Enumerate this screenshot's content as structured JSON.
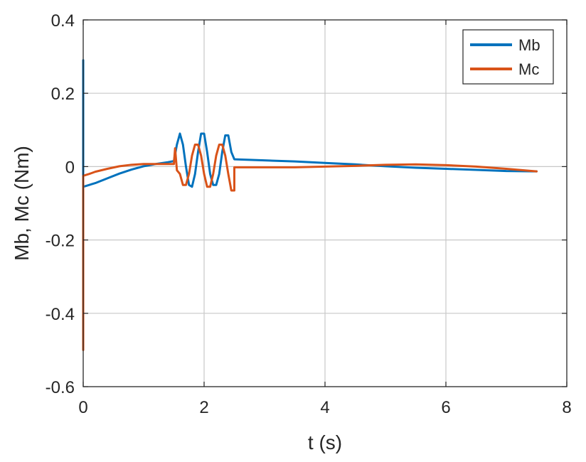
{
  "chart_data": {
    "type": "line",
    "xlabel": "t (s)",
    "ylabel": "Mb, Mc (Nm)",
    "xlim": [
      0,
      8
    ],
    "ylim": [
      -0.6,
      0.4
    ],
    "x_ticks": [
      0,
      2,
      4,
      6,
      8
    ],
    "x_tick_labels": [
      "0",
      "2",
      "4",
      "6",
      "8"
    ],
    "y_ticks": [
      -0.6,
      -0.4,
      -0.2,
      0,
      0.2,
      0.4
    ],
    "y_tick_labels": [
      "-0.6",
      "-0.4",
      "-0.2",
      "0",
      "0.2",
      "0.4"
    ],
    "grid": true,
    "legend_position": "top-right",
    "series": [
      {
        "name": "Mb",
        "color": "#0072BD",
        "x": [
          0,
          0,
          0,
          0.2,
          0.4,
          0.6,
          0.8,
          1.0,
          1.2,
          1.4,
          1.5,
          1.55,
          1.6,
          1.65,
          1.7,
          1.75,
          1.8,
          1.85,
          1.9,
          1.95,
          2.0,
          2.05,
          2.1,
          2.15,
          2.2,
          2.25,
          2.3,
          2.35,
          2.4,
          2.45,
          2.5,
          2.5,
          3.0,
          3.5,
          4.0,
          4.5,
          5.0,
          5.5,
          6.0,
          6.5,
          7.0,
          7.5
        ],
        "y": [
          0.29,
          0.01,
          -0.055,
          -0.045,
          -0.032,
          -0.019,
          -0.008,
          0.001,
          0.007,
          0.012,
          0.015,
          0.06,
          0.09,
          0.06,
          0.0,
          -0.05,
          -0.055,
          -0.02,
          0.04,
          0.09,
          0.09,
          0.04,
          -0.02,
          -0.05,
          -0.05,
          -0.02,
          0.04,
          0.085,
          0.085,
          0.04,
          0.02,
          0.02,
          0.017,
          0.014,
          0.01,
          0.006,
          0.001,
          -0.003,
          -0.006,
          -0.009,
          -0.012,
          -0.013
        ]
      },
      {
        "name": "Mc",
        "color": "#D95319",
        "x": [
          0,
          0,
          0,
          0.1,
          0.2,
          0.4,
          0.6,
          0.8,
          1.0,
          1.2,
          1.4,
          1.5,
          1.52,
          1.55,
          1.6,
          1.65,
          1.7,
          1.75,
          1.8,
          1.85,
          1.9,
          1.95,
          2.0,
          2.05,
          2.1,
          2.15,
          2.2,
          2.25,
          2.3,
          2.35,
          2.4,
          2.45,
          2.5,
          2.5,
          2.5,
          3.0,
          3.5,
          4.0,
          4.5,
          5.0,
          5.5,
          6.0,
          6.5,
          7.0,
          7.5
        ],
        "y": [
          -0.5,
          -0.03,
          -0.025,
          -0.02,
          -0.014,
          -0.006,
          0.001,
          0.005,
          0.007,
          0.007,
          0.007,
          0.007,
          0.05,
          -0.01,
          -0.02,
          -0.05,
          -0.05,
          -0.02,
          0.03,
          0.06,
          0.06,
          0.03,
          -0.02,
          -0.055,
          -0.055,
          -0.02,
          0.03,
          0.06,
          0.06,
          0.03,
          -0.02,
          -0.065,
          -0.065,
          -0.03,
          -0.002,
          -0.002,
          -0.002,
          0.0,
          0.002,
          0.005,
          0.006,
          0.004,
          0.0,
          -0.006,
          -0.013
        ]
      }
    ]
  }
}
